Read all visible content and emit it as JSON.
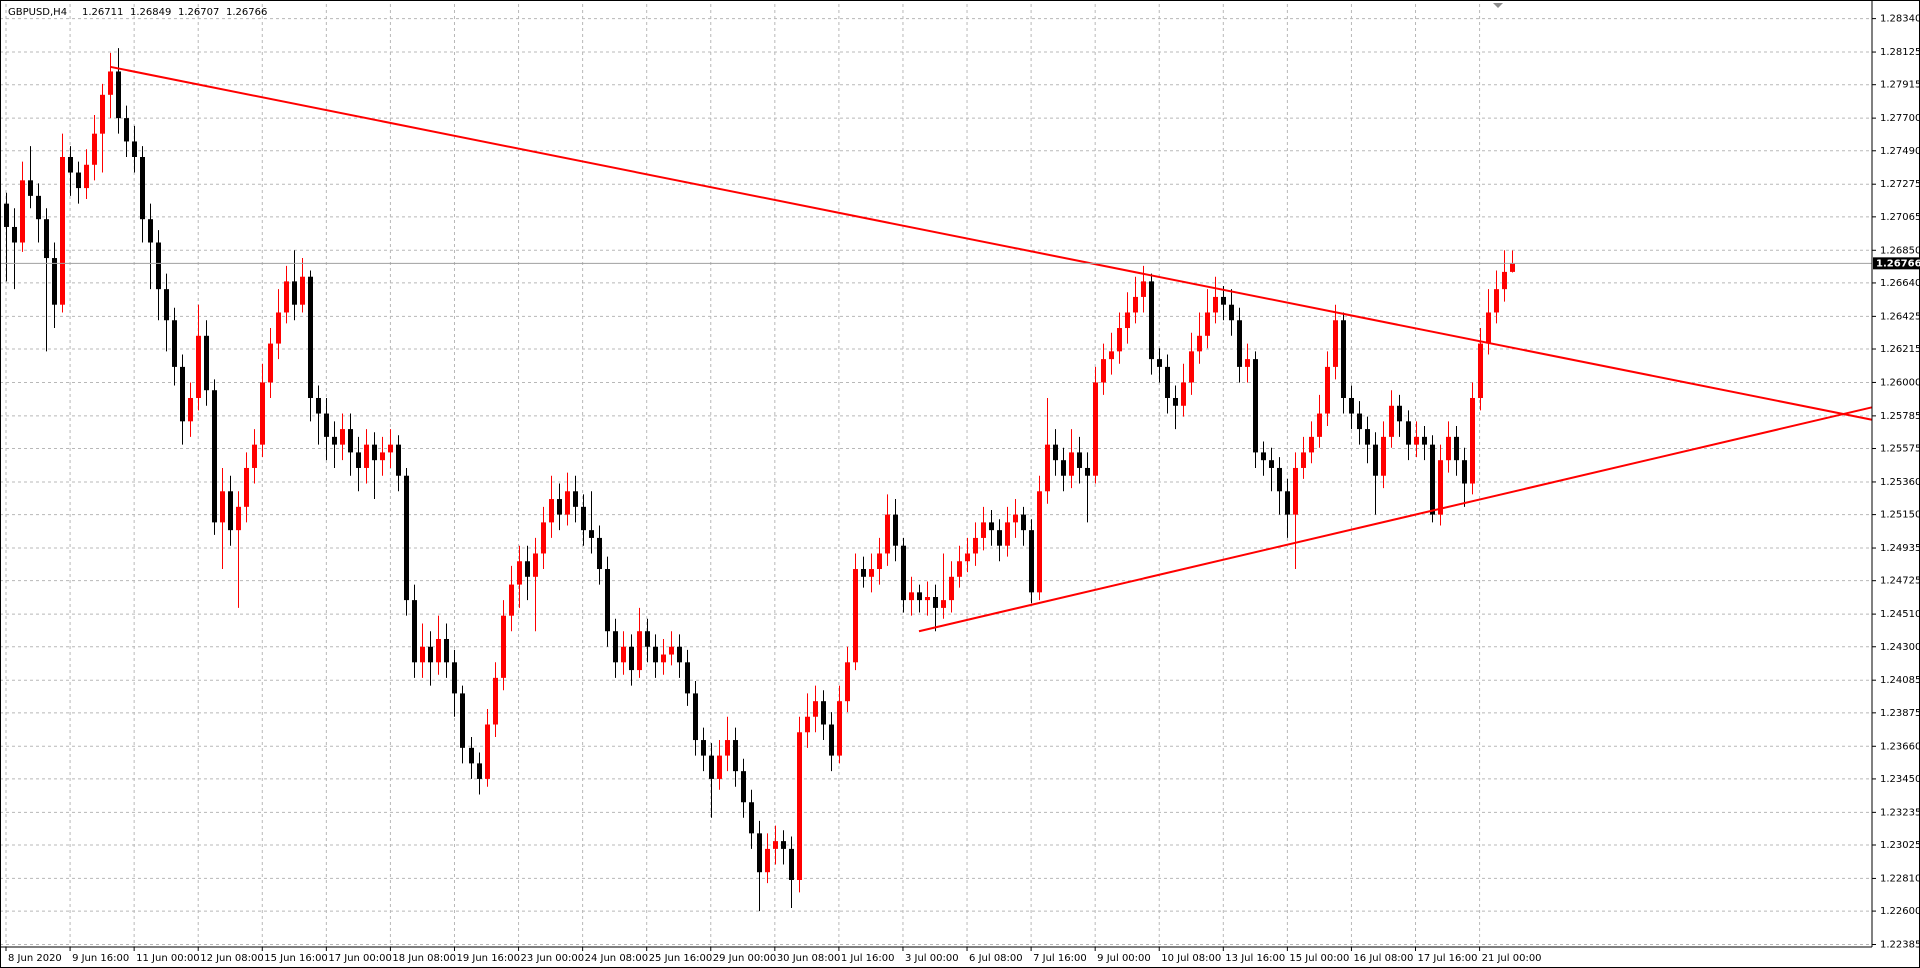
{
  "chart_data": {
    "type": "candlestick",
    "title": "GBPUSD,H4",
    "bull_color": "#ff0000",
    "bear_color": "#000000",
    "grid": true,
    "xlim": [
      -0.75,
      233
    ],
    "ylim": [
      1.22369,
      1.28434
    ],
    "yticks": [
      {
        "value": 1.2834,
        "label": "1.28340"
      },
      1.28125,
      1.27915,
      {
        "value": 1.277,
        "label": "1.27700"
      },
      {
        "value": 1.2749,
        "label": "1.27490"
      },
      1.27275,
      1.27065,
      {
        "value": 1.2685,
        "label": "1.26850"
      },
      {
        "value": 1.2664,
        "label": "1.26640"
      },
      1.26425,
      1.26215,
      {
        "value": 1.26,
        "label": "1.26000"
      },
      1.25785,
      1.25575,
      {
        "value": 1.2536,
        "label": "1.25360"
      },
      {
        "value": 1.2515,
        "label": "1.25150"
      },
      1.24935,
      1.24725,
      {
        "value": 1.2451,
        "label": "1.24510"
      },
      {
        "value": 1.243,
        "label": "1.24300"
      },
      1.24085,
      1.23875,
      {
        "value": 1.2366,
        "label": "1.23660"
      },
      {
        "value": 1.2345,
        "label": "1.23450"
      },
      1.23235,
      1.23025,
      {
        "value": 1.2281,
        "label": "1.22810"
      },
      {
        "value": 1.226,
        "label": "1.22600"
      },
      1.22385
    ],
    "xticks": [
      {
        "value": 0,
        "label": "8 Jun 2020"
      },
      {
        "value": 8,
        "label": "9 Jun 16:00"
      },
      {
        "value": 16,
        "label": "11 Jun 00:00"
      },
      {
        "value": 24,
        "label": "12 Jun 08:00"
      },
      {
        "value": 32,
        "label": "15 Jun 16:00"
      },
      {
        "value": 40,
        "label": "17 Jun 00:00"
      },
      {
        "value": 48,
        "label": "18 Jun 08:00"
      },
      {
        "value": 56,
        "label": "19 Jun 16:00"
      },
      {
        "value": 64,
        "label": "23 Jun 00:00"
      },
      {
        "value": 72,
        "label": "24 Jun 08:00"
      },
      {
        "value": 80,
        "label": "25 Jun 16:00"
      },
      {
        "value": 88,
        "label": "29 Jun 00:00"
      },
      {
        "value": 96,
        "label": "30 Jun 08:00"
      },
      {
        "value": 104,
        "label": "1 Jul 16:00"
      },
      {
        "value": 112,
        "label": "3 Jul 00:00"
      },
      {
        "value": 120,
        "label": "6 Jul 08:00"
      },
      {
        "value": 128,
        "label": "7 Jul 16:00"
      },
      {
        "value": 136,
        "label": "9 Jul 00:00"
      },
      {
        "value": 144,
        "label": "10 Jul 08:00"
      },
      {
        "value": 152,
        "label": "13 Jul 16:00"
      },
      {
        "value": 160,
        "label": "15 Jul 00:00"
      },
      {
        "value": 168,
        "label": "16 Jul 08:00"
      },
      {
        "value": 176,
        "label": "17 Jul 16:00"
      },
      {
        "value": 184,
        "label": "21 Jul 00:00"
      }
    ],
    "trendlines": [
      {
        "color": "#ff0000",
        "x": [
          13,
          233
        ],
        "y": [
          1.2803,
          1.2576
        ]
      },
      {
        "color": "#ff0000",
        "x": [
          114,
          233
        ],
        "y": [
          1.244,
          1.2584
        ]
      }
    ],
    "candles": [
      [
        1.2715,
        1.2722,
        1.2665,
        1.27
      ],
      [
        1.27,
        1.2712,
        1.266,
        1.269
      ],
      [
        1.269,
        1.2742,
        1.2684,
        1.273
      ],
      [
        1.273,
        1.2752,
        1.2712,
        1.272
      ],
      [
        1.272,
        1.2728,
        1.269,
        1.2705
      ],
      [
        1.2705,
        1.2712,
        1.262,
        1.268
      ],
      [
        1.268,
        1.269,
        1.2635,
        1.265
      ],
      [
        1.265,
        1.276,
        1.2645,
        1.2745
      ],
      [
        1.2745,
        1.2752,
        1.272,
        1.2735
      ],
      [
        1.2735,
        1.2742,
        1.2715,
        1.2725
      ],
      [
        1.2725,
        1.275,
        1.2718,
        1.274
      ],
      [
        1.274,
        1.2772,
        1.273,
        1.276
      ],
      [
        1.276,
        1.2792,
        1.2735,
        1.2785
      ],
      [
        1.2785,
        1.2812,
        1.277,
        1.28
      ],
      [
        1.28,
        1.2815,
        1.276,
        1.277
      ],
      [
        1.277,
        1.2778,
        1.2745,
        1.2755
      ],
      [
        1.2755,
        1.2765,
        1.2735,
        1.2745
      ],
      [
        1.2745,
        1.2752,
        1.269,
        1.2705
      ],
      [
        1.2705,
        1.2715,
        1.266,
        1.269
      ],
      [
        1.269,
        1.2698,
        1.264,
        1.266
      ],
      [
        1.266,
        1.267,
        1.262,
        1.264
      ],
      [
        1.264,
        1.2648,
        1.2598,
        1.261
      ],
      [
        1.261,
        1.2618,
        1.256,
        1.2575
      ],
      [
        1.2575,
        1.26,
        1.2565,
        1.259
      ],
      [
        1.259,
        1.265,
        1.2582,
        1.263
      ],
      [
        1.263,
        1.264,
        1.2585,
        1.2595
      ],
      [
        1.2595,
        1.2602,
        1.2502,
        1.251
      ],
      [
        1.251,
        1.2545,
        1.248,
        1.253
      ],
      [
        1.253,
        1.254,
        1.2495,
        1.2505
      ],
      [
        1.2505,
        1.253,
        1.2455,
        1.252
      ],
      [
        1.252,
        1.2555,
        1.251,
        1.2545
      ],
      [
        1.2545,
        1.257,
        1.2535,
        1.256
      ],
      [
        1.256,
        1.2612,
        1.2552,
        1.26
      ],
      [
        1.26,
        1.2635,
        1.259,
        1.2625
      ],
      [
        1.2625,
        1.266,
        1.2615,
        1.2645
      ],
      [
        1.2645,
        1.2675,
        1.2638,
        1.2665
      ],
      [
        1.2665,
        1.2685,
        1.264,
        1.265
      ],
      [
        1.265,
        1.268,
        1.2645,
        1.2668
      ],
      [
        1.2668,
        1.2672,
        1.2575,
        1.259
      ],
      [
        1.259,
        1.2598,
        1.256,
        1.258
      ],
      [
        1.258,
        1.259,
        1.255,
        1.2565
      ],
      [
        1.2565,
        1.2575,
        1.2545,
        1.256
      ],
      [
        1.256,
        1.258,
        1.255,
        1.257
      ],
      [
        1.257,
        1.258,
        1.254,
        1.2555
      ],
      [
        1.2555,
        1.2565,
        1.253,
        1.2545
      ],
      [
        1.2545,
        1.257,
        1.2535,
        1.256
      ],
      [
        1.256,
        1.2568,
        1.2525,
        1.255
      ],
      [
        1.255,
        1.2565,
        1.254,
        1.2555
      ],
      [
        1.2555,
        1.257,
        1.2545,
        1.256
      ],
      [
        1.256,
        1.2566,
        1.253,
        1.254
      ],
      [
        1.254,
        1.2545,
        1.245,
        1.246
      ],
      [
        1.246,
        1.247,
        1.241,
        1.242
      ],
      [
        1.242,
        1.2445,
        1.241,
        1.243
      ],
      [
        1.243,
        1.244,
        1.2405,
        1.242
      ],
      [
        1.242,
        1.245,
        1.2412,
        1.2435
      ],
      [
        1.2435,
        1.2445,
        1.241,
        1.242
      ],
      [
        1.242,
        1.2428,
        1.2385,
        1.24
      ],
      [
        1.24,
        1.2405,
        1.2355,
        1.2365
      ],
      [
        1.2365,
        1.2372,
        1.2345,
        1.2355
      ],
      [
        1.2355,
        1.2362,
        1.2335,
        1.2345
      ],
      [
        1.2345,
        1.239,
        1.234,
        1.238
      ],
      [
        1.238,
        1.242,
        1.2372,
        1.241
      ],
      [
        1.241,
        1.246,
        1.2402,
        1.245
      ],
      [
        1.245,
        1.2482,
        1.244,
        1.247
      ],
      [
        1.247,
        1.2495,
        1.2455,
        1.2485
      ],
      [
        1.2485,
        1.2495,
        1.246,
        1.2475
      ],
      [
        1.2475,
        1.25,
        1.244,
        1.249
      ],
      [
        1.249,
        1.252,
        1.248,
        1.251
      ],
      [
        1.251,
        1.254,
        1.25,
        1.2525
      ],
      [
        1.2525,
        1.2535,
        1.2505,
        1.2515
      ],
      [
        1.2515,
        1.2542,
        1.2508,
        1.253
      ],
      [
        1.253,
        1.254,
        1.251,
        1.252
      ],
      [
        1.252,
        1.2528,
        1.2495,
        1.2505
      ],
      [
        1.2505,
        1.253,
        1.249,
        1.25
      ],
      [
        1.25,
        1.2508,
        1.247,
        1.248
      ],
      [
        1.248,
        1.2488,
        1.243,
        1.244
      ],
      [
        1.244,
        1.2448,
        1.241,
        1.242
      ],
      [
        1.242,
        1.244,
        1.2412,
        1.243
      ],
      [
        1.243,
        1.2438,
        1.2405,
        1.2415
      ],
      [
        1.2415,
        1.2455,
        1.241,
        1.244
      ],
      [
        1.244,
        1.2448,
        1.242,
        1.243
      ],
      [
        1.243,
        1.2438,
        1.241,
        1.242
      ],
      [
        1.242,
        1.2435,
        1.2412,
        1.2425
      ],
      [
        1.2425,
        1.244,
        1.2418,
        1.243
      ],
      [
        1.243,
        1.2438,
        1.241,
        1.242
      ],
      [
        1.242,
        1.2428,
        1.2392,
        1.24
      ],
      [
        1.24,
        1.2408,
        1.236,
        1.237
      ],
      [
        1.237,
        1.2378,
        1.235,
        1.236
      ],
      [
        1.236,
        1.2368,
        1.232,
        1.2345
      ],
      [
        1.2345,
        1.237,
        1.2338,
        1.236
      ],
      [
        1.236,
        1.2385,
        1.235,
        1.237
      ],
      [
        1.237,
        1.2378,
        1.234,
        1.235
      ],
      [
        1.235,
        1.2358,
        1.232,
        1.233
      ],
      [
        1.233,
        1.2338,
        1.23,
        1.231
      ],
      [
        1.231,
        1.2318,
        1.226,
        1.2285
      ],
      [
        1.2285,
        1.231,
        1.2278,
        1.23
      ],
      [
        1.23,
        1.2315,
        1.229,
        1.2305
      ],
      [
        1.2305,
        1.2312,
        1.229,
        1.23
      ],
      [
        1.23,
        1.2308,
        1.2262,
        1.228
      ],
      [
        1.228,
        1.2385,
        1.2272,
        1.2375
      ],
      [
        1.2375,
        1.24,
        1.2365,
        1.2385
      ],
      [
        1.2385,
        1.2405,
        1.2375,
        1.2395
      ],
      [
        1.2395,
        1.2402,
        1.237,
        1.238
      ],
      [
        1.238,
        1.2388,
        1.235,
        1.236
      ],
      [
        1.236,
        1.2405,
        1.2355,
        1.2395
      ],
      [
        1.2395,
        1.243,
        1.2388,
        1.242
      ],
      [
        1.242,
        1.249,
        1.2415,
        1.248
      ],
      [
        1.248,
        1.2488,
        1.2468,
        1.2475
      ],
      [
        1.2475,
        1.249,
        1.2465,
        1.248
      ],
      [
        1.248,
        1.25,
        1.247,
        1.249
      ],
      [
        1.249,
        1.2528,
        1.2482,
        1.2515
      ],
      [
        1.2515,
        1.2525,
        1.2485,
        1.2495
      ],
      [
        1.2495,
        1.25,
        1.2452,
        1.246
      ],
      [
        1.246,
        1.2475,
        1.245,
        1.2465
      ],
      [
        1.2465,
        1.247,
        1.2452,
        1.246
      ],
      [
        1.246,
        1.2472,
        1.245,
        1.2462
      ],
      [
        1.2462,
        1.247,
        1.244,
        1.2455
      ],
      [
        1.2455,
        1.249,
        1.2448,
        1.246
      ],
      [
        1.246,
        1.2485,
        1.2452,
        1.2475
      ],
      [
        1.2475,
        1.2495,
        1.2468,
        1.2485
      ],
      [
        1.2485,
        1.25,
        1.2478,
        1.249
      ],
      [
        1.249,
        1.251,
        1.2482,
        1.25
      ],
      [
        1.25,
        1.252,
        1.2492,
        1.251
      ],
      [
        1.251,
        1.2518,
        1.2495,
        1.2505
      ],
      [
        1.2505,
        1.2512,
        1.2485,
        1.2495
      ],
      [
        1.2495,
        1.252,
        1.2488,
        1.251
      ],
      [
        1.251,
        1.2525,
        1.25,
        1.2515
      ],
      [
        1.2515,
        1.252,
        1.2495,
        1.2505
      ],
      [
        1.2505,
        1.2512,
        1.2458,
        1.2465
      ],
      [
        1.2465,
        1.254,
        1.246,
        1.253
      ],
      [
        1.253,
        1.259,
        1.2522,
        1.256
      ],
      [
        1.256,
        1.257,
        1.254,
        1.255
      ],
      [
        1.255,
        1.2558,
        1.253,
        1.254
      ],
      [
        1.254,
        1.257,
        1.2532,
        1.2555
      ],
      [
        1.2555,
        1.2565,
        1.2535,
        1.2545
      ],
      [
        1.2545,
        1.2555,
        1.251,
        1.254
      ],
      [
        1.254,
        1.261,
        1.2535,
        1.26
      ],
      [
        1.26,
        1.2625,
        1.2592,
        1.2615
      ],
      [
        1.2615,
        1.2632,
        1.2605,
        1.262
      ],
      [
        1.262,
        1.2645,
        1.2612,
        1.2635
      ],
      [
        1.2635,
        1.2658,
        1.2625,
        1.2645
      ],
      [
        1.2645,
        1.2668,
        1.2638,
        1.2655
      ],
      [
        1.2655,
        1.2675,
        1.2645,
        1.2665
      ],
      [
        1.2665,
        1.267,
        1.2605,
        1.2615
      ],
      [
        1.2615,
        1.2622,
        1.26,
        1.261
      ],
      [
        1.261,
        1.2618,
        1.258,
        1.259
      ],
      [
        1.259,
        1.2598,
        1.257,
        1.2585
      ],
      [
        1.2585,
        1.2612,
        1.2578,
        1.26
      ],
      [
        1.26,
        1.2632,
        1.2592,
        1.262
      ],
      [
        1.262,
        1.2645,
        1.2612,
        1.263
      ],
      [
        1.263,
        1.266,
        1.2622,
        1.2645
      ],
      [
        1.2645,
        1.2668,
        1.2638,
        1.2655
      ],
      [
        1.2655,
        1.2662,
        1.264,
        1.265
      ],
      [
        1.265,
        1.266,
        1.263,
        1.264
      ],
      [
        1.264,
        1.2648,
        1.26,
        1.261
      ],
      [
        1.261,
        1.2625,
        1.26,
        1.2615
      ],
      [
        1.2615,
        1.262,
        1.2545,
        1.2555
      ],
      [
        1.2555,
        1.2562,
        1.254,
        1.255
      ],
      [
        1.255,
        1.2558,
        1.253,
        1.2545
      ],
      [
        1.2545,
        1.2552,
        1.2515,
        1.253
      ],
      [
        1.253,
        1.2538,
        1.25,
        1.2515
      ],
      [
        1.2515,
        1.2555,
        1.248,
        1.2545
      ],
      [
        1.2545,
        1.2565,
        1.2538,
        1.2555
      ],
      [
        1.2555,
        1.2575,
        1.2548,
        1.2565
      ],
      [
        1.2565,
        1.2592,
        1.2558,
        1.258
      ],
      [
        1.258,
        1.262,
        1.2572,
        1.261
      ],
      [
        1.261,
        1.265,
        1.2602,
        1.264
      ],
      [
        1.264,
        1.2645,
        1.258,
        1.259
      ],
      [
        1.259,
        1.2598,
        1.257,
        1.258
      ],
      [
        1.258,
        1.2588,
        1.256,
        1.257
      ],
      [
        1.257,
        1.2578,
        1.2548,
        1.256
      ],
      [
        1.256,
        1.2568,
        1.2515,
        1.254
      ],
      [
        1.254,
        1.2575,
        1.2532,
        1.2565
      ],
      [
        1.2565,
        1.2595,
        1.2558,
        1.2585
      ],
      [
        1.2585,
        1.2592,
        1.2565,
        1.2575
      ],
      [
        1.2575,
        1.2582,
        1.255,
        1.256
      ],
      [
        1.256,
        1.2575,
        1.2552,
        1.2565
      ],
      [
        1.2565,
        1.2572,
        1.255,
        1.256
      ],
      [
        1.256,
        1.2566,
        1.251,
        1.2515
      ],
      [
        1.2515,
        1.256,
        1.2508,
        1.255
      ],
      [
        1.255,
        1.2575,
        1.2542,
        1.2565
      ],
      [
        1.2565,
        1.2572,
        1.254,
        1.255
      ],
      [
        1.255,
        1.2558,
        1.252,
        1.2535
      ],
      [
        1.2535,
        1.26,
        1.2528,
        1.259
      ],
      [
        1.259,
        1.2635,
        1.2582,
        1.2625
      ],
      [
        1.2625,
        1.266,
        1.2618,
        1.2645
      ],
      [
        1.2645,
        1.2672,
        1.2638,
        1.266
      ],
      [
        1.266,
        1.2685,
        1.2652,
        1.26711
      ],
      [
        1.26711,
        1.26849,
        1.26707,
        1.26766
      ]
    ]
  }
}
